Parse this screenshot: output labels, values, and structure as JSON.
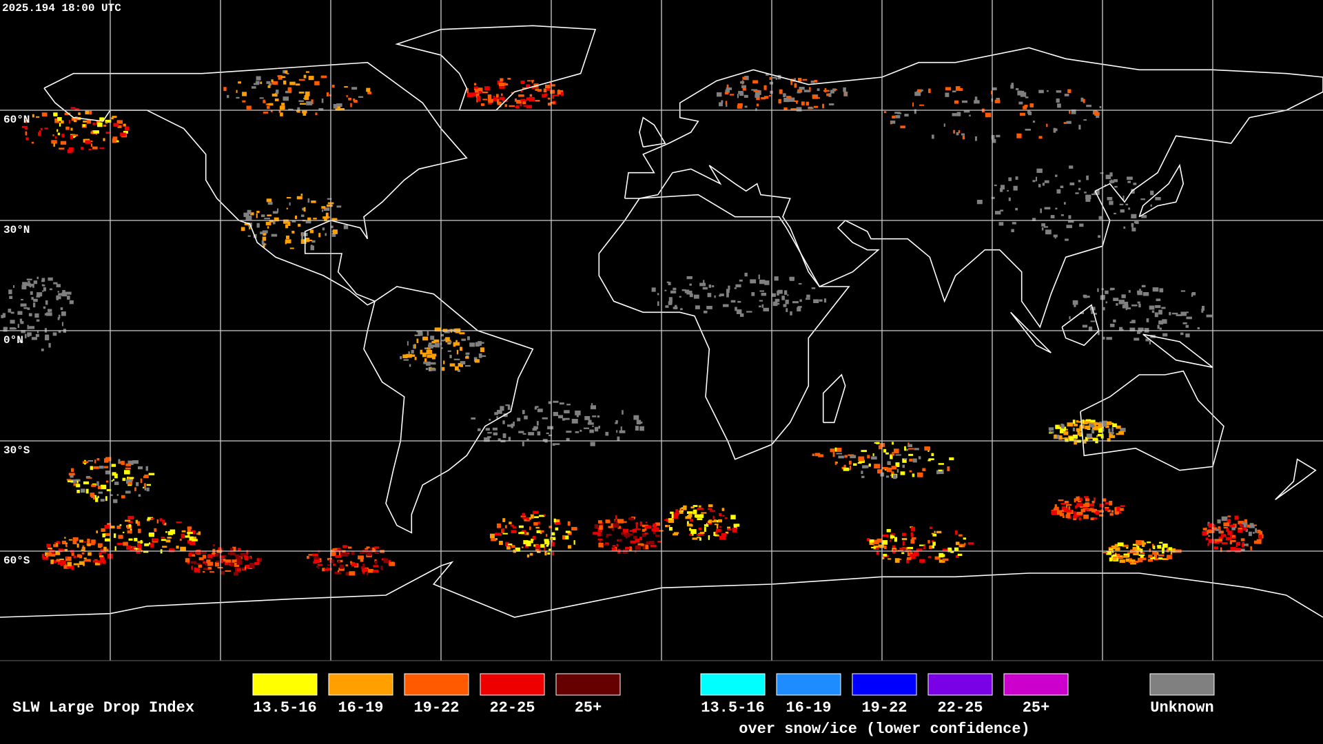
{
  "header": {
    "timestamp": "2025.194 18:00 UTC"
  },
  "map": {
    "lat_labels": [
      "60°N",
      "30°N",
      "0°N",
      "30°S",
      "60°S"
    ]
  },
  "legend": {
    "title": "SLW Large Drop Index",
    "groups": [
      {
        "items": [
          {
            "label": "13.5-16",
            "color": "#ffff00"
          },
          {
            "label": "16-19",
            "color": "#ffa000"
          },
          {
            "label": "19-22",
            "color": "#ff5a00"
          },
          {
            "label": "22-25",
            "color": "#ee0000"
          },
          {
            "label": "25+",
            "color": "#660000"
          }
        ]
      },
      {
        "items": [
          {
            "label": "13.5-16",
            "color": "#00ffff"
          },
          {
            "label": "16-19",
            "color": "#1e8cff"
          },
          {
            "label": "19-22",
            "color": "#0000ff"
          },
          {
            "label": "22-25",
            "color": "#7a00e6"
          },
          {
            "label": "25+",
            "color": "#cc00cc"
          }
        ],
        "caption": "over snow/ice (lower confidence)"
      },
      {
        "items": [
          {
            "label": "Unknown",
            "color": "#808080"
          }
        ]
      }
    ]
  }
}
